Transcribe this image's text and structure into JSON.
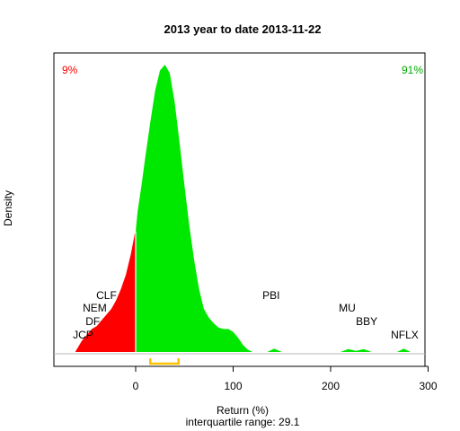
{
  "chart_data": {
    "type": "area",
    "title": "2013  year to date 2013-11-22",
    "xlabel": "Return (%)",
    "subtitle": "interquartile range: 29.1",
    "ylabel": "Density",
    "xlim": [
      -82,
      302
    ],
    "x_ticks": [
      0,
      100,
      200,
      300
    ],
    "negative_share": "9%",
    "positive_share": "91%",
    "colors": {
      "negative": "#ff0000",
      "positive": "#00e800",
      "iqr": "#ffc000",
      "axis": "#000000"
    },
    "iqr": [
      15,
      44
    ],
    "density": [
      {
        "x": -62,
        "y": 0.0
      },
      {
        "x": -55,
        "y": 0.04
      },
      {
        "x": -50,
        "y": 0.06
      },
      {
        "x": -45,
        "y": 0.08
      },
      {
        "x": -40,
        "y": 0.09
      },
      {
        "x": -35,
        "y": 0.11
      },
      {
        "x": -30,
        "y": 0.13
      },
      {
        "x": -25,
        "y": 0.15
      },
      {
        "x": -20,
        "y": 0.18
      },
      {
        "x": -15,
        "y": 0.22
      },
      {
        "x": -10,
        "y": 0.27
      },
      {
        "x": -5,
        "y": 0.34
      },
      {
        "x": -1,
        "y": 0.41
      },
      {
        "x": 0,
        "y": 0.42
      },
      {
        "x": 2,
        "y": 0.49
      },
      {
        "x": 6,
        "y": 0.58
      },
      {
        "x": 10,
        "y": 0.68
      },
      {
        "x": 15,
        "y": 0.8
      },
      {
        "x": 20,
        "y": 0.91
      },
      {
        "x": 25,
        "y": 0.98
      },
      {
        "x": 30,
        "y": 1.0
      },
      {
        "x": 35,
        "y": 0.97
      },
      {
        "x": 40,
        "y": 0.87
      },
      {
        "x": 45,
        "y": 0.73
      },
      {
        "x": 50,
        "y": 0.58
      },
      {
        "x": 55,
        "y": 0.44
      },
      {
        "x": 60,
        "y": 0.32
      },
      {
        "x": 65,
        "y": 0.22
      },
      {
        "x": 70,
        "y": 0.15
      },
      {
        "x": 75,
        "y": 0.12
      },
      {
        "x": 80,
        "y": 0.1
      },
      {
        "x": 85,
        "y": 0.085
      },
      {
        "x": 90,
        "y": 0.08
      },
      {
        "x": 95,
        "y": 0.08
      },
      {
        "x": 100,
        "y": 0.07
      },
      {
        "x": 105,
        "y": 0.05
      },
      {
        "x": 110,
        "y": 0.025
      },
      {
        "x": 115,
        "y": 0.008
      },
      {
        "x": 120,
        "y": 0.0
      },
      {
        "x": 135,
        "y": 0.0
      },
      {
        "x": 142,
        "y": 0.012
      },
      {
        "x": 150,
        "y": 0.0
      },
      {
        "x": 210,
        "y": 0.0
      },
      {
        "x": 218,
        "y": 0.01
      },
      {
        "x": 226,
        "y": 0.004
      },
      {
        "x": 234,
        "y": 0.01
      },
      {
        "x": 242,
        "y": 0.0
      },
      {
        "x": 268,
        "y": 0.0
      },
      {
        "x": 275,
        "y": 0.012
      },
      {
        "x": 282,
        "y": 0.0
      }
    ],
    "annotations": [
      {
        "label": "JCP",
        "x": -54,
        "y": 0.047
      },
      {
        "label": "DF",
        "x": -44,
        "y": 0.093
      },
      {
        "label": "NEM",
        "x": -42,
        "y": 0.14
      },
      {
        "label": "CLF",
        "x": -30,
        "y": 0.185
      },
      {
        "label": "PBI",
        "x": 139,
        "y": 0.185
      },
      {
        "label": "MU",
        "x": 217,
        "y": 0.14
      },
      {
        "label": "BBY",
        "x": 237,
        "y": 0.093
      },
      {
        "label": "NFLX",
        "x": 276,
        "y": 0.047
      }
    ]
  }
}
